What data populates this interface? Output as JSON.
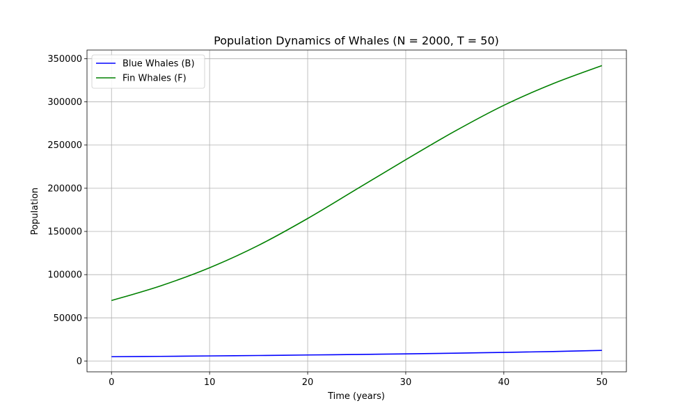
{
  "chart_data": {
    "type": "line",
    "title": "Population Dynamics of Whales (N = 2000, T = 50)",
    "xlabel": "Time (years)",
    "ylabel": "Population",
    "xlim": [
      -2.5,
      52.5
    ],
    "ylim": [
      -12500,
      360000
    ],
    "xticks": [
      0,
      10,
      20,
      30,
      40,
      50
    ],
    "yticks": [
      0,
      50000,
      100000,
      150000,
      200000,
      250000,
      300000,
      350000
    ],
    "grid": true,
    "legend_position": "top-left",
    "series": [
      {
        "name": "Blue Whales (B)",
        "color": "#0000ff",
        "x": [
          0,
          5,
          10,
          15,
          20,
          25,
          30,
          35,
          40,
          45,
          50
        ],
        "y": [
          5000,
          5400,
          5900,
          6400,
          7000,
          7600,
          8300,
          9100,
          10000,
          11000,
          12300
        ]
      },
      {
        "name": "Fin Whales (F)",
        "color": "#008000",
        "x": [
          0,
          5,
          10,
          15,
          20,
          25,
          30,
          35,
          40,
          45,
          50
        ],
        "y": [
          70000,
          87000,
          108000,
          134000,
          165000,
          199000,
          233000,
          266000,
          296000,
          321000,
          342000
        ]
      }
    ]
  }
}
